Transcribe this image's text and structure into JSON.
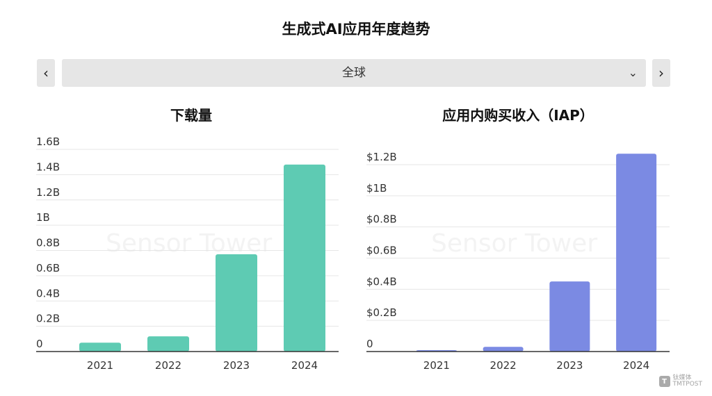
{
  "header": {
    "title": "生成式AI应用年度趋势"
  },
  "nav": {
    "prev_symbol": "‹",
    "next_symbol": "›"
  },
  "region": {
    "selected": "全球",
    "chevron": "⌄"
  },
  "watermark": "Sensor Tower",
  "corner_logo": {
    "mark": "T",
    "name": "钛媒体",
    "sub": "TMTPOST"
  },
  "colors": {
    "downloads": "#5ecbb3",
    "iap": "#7b8ae3",
    "grid": "#e6e6e6",
    "axis": "#333333"
  },
  "chart_data": [
    {
      "type": "bar",
      "title": "下载量",
      "categories": [
        "2021",
        "2022",
        "2023",
        "2024"
      ],
      "values": [
        0.07,
        0.12,
        0.77,
        1.48
      ],
      "unit": "B",
      "ylim": [
        0,
        1.6
      ],
      "yticks": [
        0,
        0.2,
        0.4,
        0.6,
        0.8,
        1.0,
        1.2,
        1.4,
        1.6
      ],
      "ytick_labels": [
        "0",
        "0.2B",
        "0.4B",
        "0.6B",
        "0.8B",
        "1B",
        "1.2B",
        "1.4B",
        "1.6B"
      ],
      "grid": true
    },
    {
      "type": "bar",
      "title": "应用内购买收入（IAP）",
      "categories": [
        "2021",
        "2022",
        "2023",
        "2024"
      ],
      "values": [
        0.005,
        0.03,
        0.45,
        1.27
      ],
      "unit": "$B",
      "ylim": [
        0,
        1.2
      ],
      "yticks": [
        0,
        0.2,
        0.4,
        0.6,
        0.8,
        1.0,
        1.2
      ],
      "ytick_labels": [
        "0",
        "$0.2B",
        "$0.4B",
        "$0.6B",
        "$0.8B",
        "$1B",
        "$1.2B"
      ],
      "grid": true
    }
  ]
}
